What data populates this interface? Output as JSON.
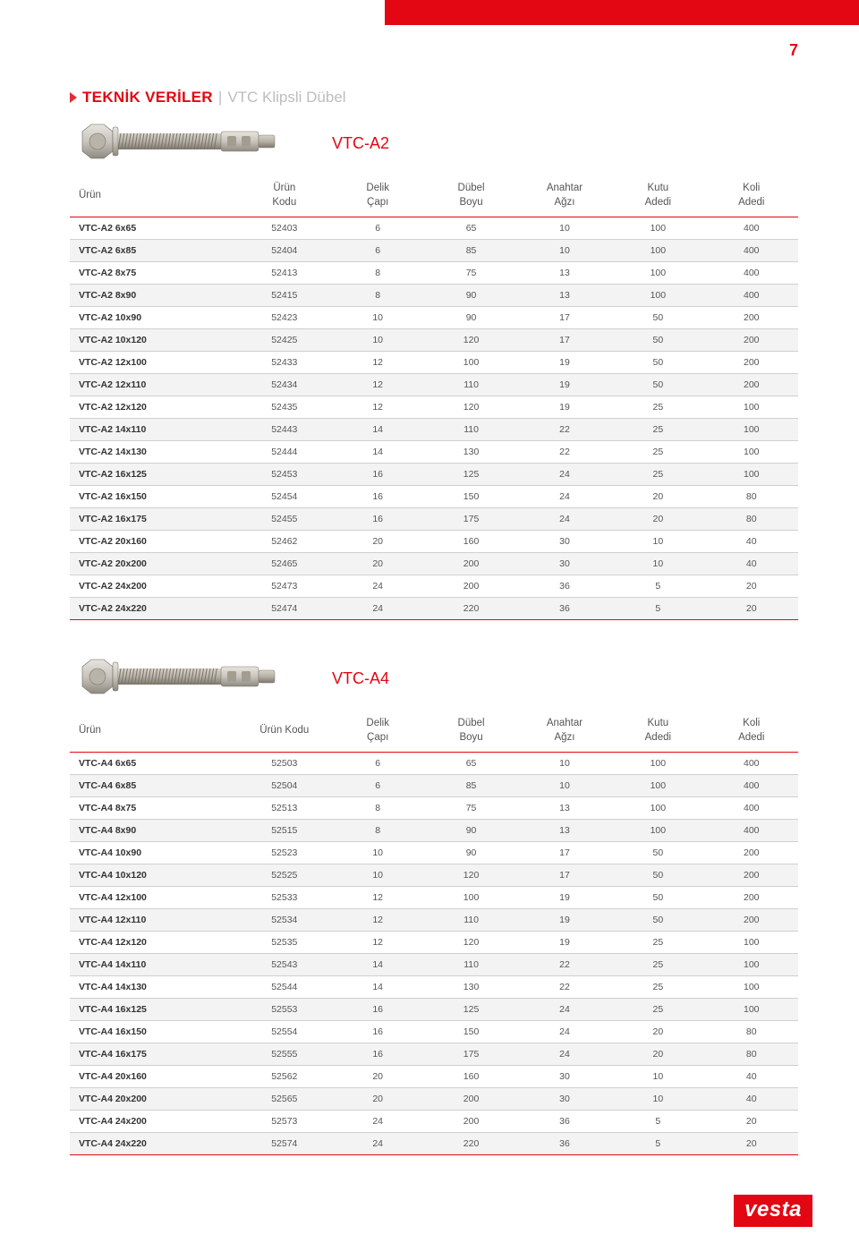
{
  "page_number": "7",
  "section": {
    "prefix": "TEKNİK VERİLER",
    "separator": " | ",
    "suffix": "VTC Klipsli Dübel"
  },
  "footer_brand": "vesta",
  "colors": {
    "accent": "#e30613",
    "grid": "#cfcfcf",
    "stripe": "#f3f3f3",
    "text": "#555"
  },
  "columns": [
    "Ürün",
    "Ürün\nKodu",
    "Delik\nÇapı",
    "Dübel\nBoyu",
    "Anahtar\nAğzı",
    "Kutu\nAdedi",
    "Koli\nAdedi"
  ],
  "tables": [
    {
      "variant": "VTC-A2",
      "columns_override": [
        "Ürün",
        "Ürün\nKodu",
        "Delik\nÇapı",
        "Dübel\nBoyu",
        "Anahtar\nAğzı",
        "Kutu\nAdedi",
        "Koli\nAdedi"
      ],
      "rows": [
        [
          "VTC-A2 6x65",
          "52403",
          "6",
          "65",
          "10",
          "100",
          "400"
        ],
        [
          "VTC-A2 6x85",
          "52404",
          "6",
          "85",
          "10",
          "100",
          "400"
        ],
        [
          "VTC-A2 8x75",
          "52413",
          "8",
          "75",
          "13",
          "100",
          "400"
        ],
        [
          "VTC-A2 8x90",
          "52415",
          "8",
          "90",
          "13",
          "100",
          "400"
        ],
        [
          "VTC-A2 10x90",
          "52423",
          "10",
          "90",
          "17",
          "50",
          "200"
        ],
        [
          "VTC-A2 10x120",
          "52425",
          "10",
          "120",
          "17",
          "50",
          "200"
        ],
        [
          "VTC-A2 12x100",
          "52433",
          "12",
          "100",
          "19",
          "50",
          "200"
        ],
        [
          "VTC-A2 12x110",
          "52434",
          "12",
          "110",
          "19",
          "50",
          "200"
        ],
        [
          "VTC-A2 12x120",
          "52435",
          "12",
          "120",
          "19",
          "25",
          "100"
        ],
        [
          "VTC-A2 14x110",
          "52443",
          "14",
          "110",
          "22",
          "25",
          "100"
        ],
        [
          "VTC-A2 14x130",
          "52444",
          "14",
          "130",
          "22",
          "25",
          "100"
        ],
        [
          "VTC-A2 16x125",
          "52453",
          "16",
          "125",
          "24",
          "25",
          "100"
        ],
        [
          "VTC-A2 16x150",
          "52454",
          "16",
          "150",
          "24",
          "20",
          "80"
        ],
        [
          "VTC-A2 16x175",
          "52455",
          "16",
          "175",
          "24",
          "20",
          "80"
        ],
        [
          "VTC-A2 20x160",
          "52462",
          "20",
          "160",
          "30",
          "10",
          "40"
        ],
        [
          "VTC-A2 20x200",
          "52465",
          "20",
          "200",
          "30",
          "10",
          "40"
        ],
        [
          "VTC-A2 24x200",
          "52473",
          "24",
          "200",
          "36",
          "5",
          "20"
        ],
        [
          "VTC-A2 24x220",
          "52474",
          "24",
          "220",
          "36",
          "5",
          "20"
        ]
      ]
    },
    {
      "variant": "VTC-A4",
      "columns_override": [
        "Ürün",
        "Ürün Kodu",
        "Delik\nÇapı",
        "Dübel\nBoyu",
        "Anahtar\nAğzı",
        "Kutu\nAdedi",
        "Koli\nAdedi"
      ],
      "rows": [
        [
          "VTC-A4 6x65",
          "52503",
          "6",
          "65",
          "10",
          "100",
          "400"
        ],
        [
          "VTC-A4 6x85",
          "52504",
          "6",
          "85",
          "10",
          "100",
          "400"
        ],
        [
          "VTC-A4 8x75",
          "52513",
          "8",
          "75",
          "13",
          "100",
          "400"
        ],
        [
          "VTC-A4 8x90",
          "52515",
          "8",
          "90",
          "13",
          "100",
          "400"
        ],
        [
          "VTC-A4 10x90",
          "52523",
          "10",
          "90",
          "17",
          "50",
          "200"
        ],
        [
          "VTC-A4 10x120",
          "52525",
          "10",
          "120",
          "17",
          "50",
          "200"
        ],
        [
          "VTC-A4 12x100",
          "52533",
          "12",
          "100",
          "19",
          "50",
          "200"
        ],
        [
          "VTC-A4 12x110",
          "52534",
          "12",
          "110",
          "19",
          "50",
          "200"
        ],
        [
          "VTC-A4 12x120",
          "52535",
          "12",
          "120",
          "19",
          "25",
          "100"
        ],
        [
          "VTC-A4 14x110",
          "52543",
          "14",
          "110",
          "22",
          "25",
          "100"
        ],
        [
          "VTC-A4 14x130",
          "52544",
          "14",
          "130",
          "22",
          "25",
          "100"
        ],
        [
          "VTC-A4 16x125",
          "52553",
          "16",
          "125",
          "24",
          "25",
          "100"
        ],
        [
          "VTC-A4 16x150",
          "52554",
          "16",
          "150",
          "24",
          "20",
          "80"
        ],
        [
          "VTC-A4 16x175",
          "52555",
          "16",
          "175",
          "24",
          "20",
          "80"
        ],
        [
          "VTC-A4 20x160",
          "52562",
          "20",
          "160",
          "30",
          "10",
          "40"
        ],
        [
          "VTC-A4 20x200",
          "52565",
          "20",
          "200",
          "30",
          "10",
          "40"
        ],
        [
          "VTC-A4 24x200",
          "52573",
          "24",
          "200",
          "36",
          "5",
          "20"
        ],
        [
          "VTC-A4 24x220",
          "52574",
          "24",
          "220",
          "36",
          "5",
          "20"
        ]
      ]
    }
  ]
}
